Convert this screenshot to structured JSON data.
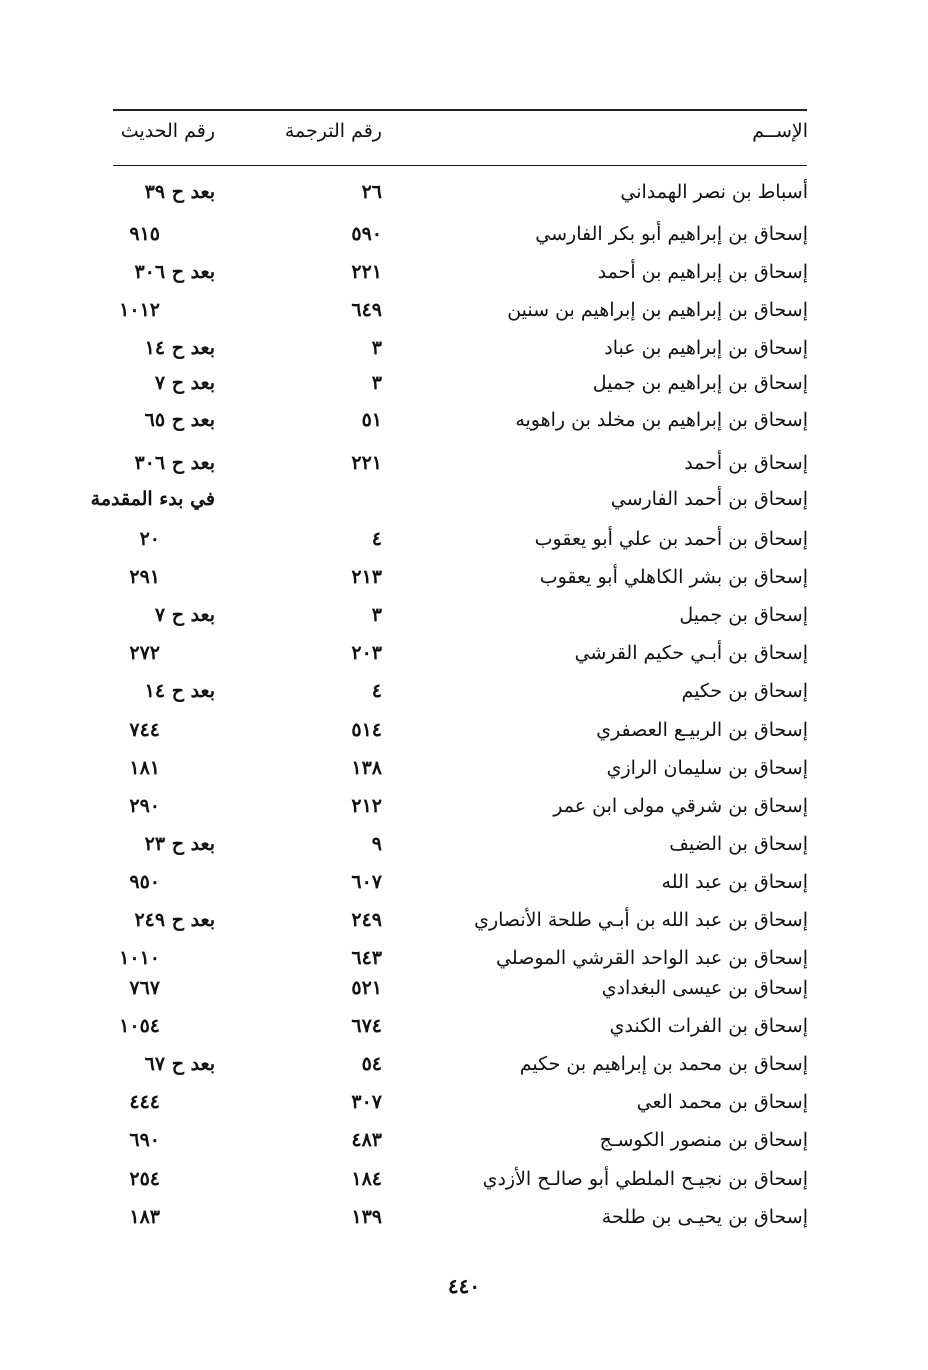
{
  "header": {
    "name": "الإســم",
    "tarjama": "رقم الترجمة",
    "hadith": "رقم الحديث"
  },
  "rows": [
    {
      "name": "أسباط بن نصر الهمداني",
      "tarjama": "٢٦",
      "hadith": "بعد ح ٣٩"
    },
    {
      "name": "إسحاق بن إبراهيم أبو بكر الفارسي",
      "tarjama": "٥٩٠",
      "hadith": "٩١٥"
    },
    {
      "name": "إسحاق بن إبراهيم بن أحمد",
      "tarjama": "٢٢١",
      "hadith": "بعد ح ٣٠٦"
    },
    {
      "name": "إسحاق بن إبراهيم بن إبراهيم بن سنين",
      "tarjama": "٦٤٩",
      "hadith": "١٠١٢"
    },
    {
      "name": "إسحاق بن إبراهيم بن عباد",
      "tarjama": "٣",
      "hadith": "بعد ح ١٤"
    },
    {
      "name": "إسحاق بن إبراهيم بن جميل",
      "tarjama": "٣",
      "hadith": "بعد ح ٧"
    },
    {
      "name": "إسحاق بن إبراهيم بن مخلد بن راهويه",
      "tarjama": "٥١",
      "hadith": "بعد ح ٦٥"
    },
    {
      "name": "إسحاق بن أحمد",
      "tarjama": "٢٢١",
      "hadith": "بعد ح ٣٠٦"
    },
    {
      "name": "إسحاق بن أحمد الفارسي",
      "tarjama": "",
      "hadith": "في بدء المقدمة"
    },
    {
      "name": "إسحاق بن أحمد بن علي أبو يعقوب",
      "tarjama": "٤",
      "hadith": "٢٠"
    },
    {
      "name": "إسحاق بن بشر الكاهلي أبو يعقوب",
      "tarjama": "٢١٣",
      "hadith": "٢٩١"
    },
    {
      "name": "إسحاق بن جميل",
      "tarjama": "٣",
      "hadith": "بعد ح ٧"
    },
    {
      "name": "إسحاق بن أبـي حكيم القرشي",
      "tarjama": "٢٠٣",
      "hadith": "٢٧٢"
    },
    {
      "name": "إسحاق بن حكيم",
      "tarjama": "٤",
      "hadith": "بعد ح ١٤"
    },
    {
      "name": "إسحاق بن الربيـع العصفري",
      "tarjama": "٥١٤",
      "hadith": "٧٤٤"
    },
    {
      "name": "إسحاق بن سليمان الرازي",
      "tarjama": "١٣٨",
      "hadith": "١٨١"
    },
    {
      "name": "إسحاق بن شرقي مولى ابن عمر",
      "tarjama": "٢١٢",
      "hadith": "٢٩٠"
    },
    {
      "name": "إسحاق بن الضيف",
      "tarjama": "٩",
      "hadith": "بعد ح ٢٣"
    },
    {
      "name": "إسحاق بن عبد الله",
      "tarjama": "٦٠٧",
      "hadith": "٩٥٠"
    },
    {
      "name": "إسحاق بن عبد الله بن أبـي طلحة الأنصاري",
      "tarjama": "٢٤٩",
      "hadith": "بعد ح ٢٤٩"
    },
    {
      "name": "إسحاق بن عبد الواحد القرشي الموصلي",
      "tarjama": "٦٤٣",
      "hadith": "١٠١٠"
    },
    {
      "name": "إسحاق بن عيسى البغدادي",
      "tarjama": "٥٢١",
      "hadith": "٧٦٧"
    },
    {
      "name": "إسحاق بن الفرات الكندي",
      "tarjama": "٦٧٤",
      "hadith": "١٠٥٤"
    },
    {
      "name": "إسحاق بن محمد بن إبراهيم بن حكيم",
      "tarjama": "٥٤",
      "hadith": "بعد ح ٦٧"
    },
    {
      "name": "إسحاق بن محمد العي",
      "tarjama": "٣٠٧",
      "hadith": "٤٤٤"
    },
    {
      "name": "إسحاق بن منصور الكوسـج",
      "tarjama": "٤٨٣",
      "hadith": "٦٩٠"
    },
    {
      "name": "إسحاق بن نجيـح الملطي أبو صالـح الأزدي",
      "tarjama": "١٨٤",
      "hadith": "٢٥٤"
    },
    {
      "name": "إسحاق بن يحيـى بن طلحة",
      "tarjama": "١٣٩",
      "hadith": "١٨٣"
    }
  ],
  "page_number": "٤٤٠"
}
